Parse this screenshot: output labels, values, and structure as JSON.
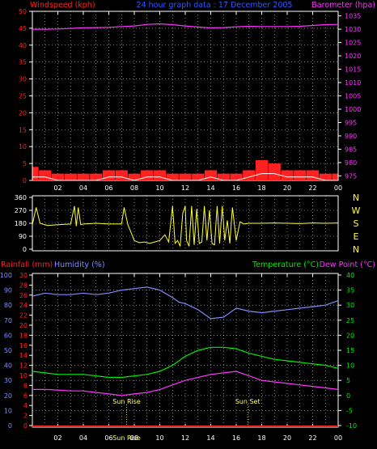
{
  "title": "24 hour graph data : 17 December 2005",
  "colors": {
    "wind": "#ff2020",
    "gust": "#ffffff",
    "baro": "#ff33ff",
    "dir": "#ffff33",
    "rain": "#ff2020",
    "hum": "#8888ff",
    "temp": "#00ee00",
    "dew": "#ff33ff",
    "sun": "#ffff66",
    "frame": "#ffffff",
    "grid": "#c8c8c8"
  },
  "chart_data": [
    {
      "type": "area",
      "title": "24 hour graph data : 17 December 2005",
      "x_ticks": [
        "02",
        "04",
        "06",
        "08",
        "10",
        "12",
        "14",
        "16",
        "18",
        "20",
        "22",
        "00"
      ],
      "left_label": "Windspeed (kph)",
      "right_label": "Barometer (hpa)",
      "left_ticks": [
        0,
        5,
        10,
        15,
        20,
        25,
        30,
        35,
        40,
        45,
        50
      ],
      "right_ticks": [
        975,
        980,
        985,
        990,
        995,
        1000,
        1005,
        1010,
        1015,
        1020,
        1025,
        1030,
        1035
      ],
      "left_range": [
        0,
        50
      ],
      "right_range": [
        973.3,
        1036.7
      ],
      "series": [
        {
          "name": "Windspeed",
          "axis": "left",
          "style": "bars",
          "x": [
            0,
            1,
            2,
            3,
            4,
            5,
            6,
            7,
            8,
            9,
            10,
            11,
            12,
            13,
            14,
            15,
            16,
            17,
            18,
            19,
            20,
            21,
            22,
            23,
            24
          ],
          "y": [
            4,
            3,
            2,
            2,
            2,
            2,
            3,
            3,
            2,
            3,
            3,
            2,
            2,
            2,
            3,
            2,
            2,
            3,
            6,
            5,
            3,
            3,
            3,
            2,
            2
          ]
        },
        {
          "name": "Gust",
          "axis": "left",
          "style": "line",
          "x": [
            0,
            1,
            2,
            3,
            4,
            5,
            6,
            7,
            8,
            9,
            10,
            11,
            12,
            13,
            14,
            15,
            16,
            17,
            18,
            19,
            20,
            21,
            22,
            23,
            24
          ],
          "y": [
            1,
            1,
            0,
            0,
            0,
            0,
            1,
            1,
            0,
            1,
            1,
            0,
            0,
            0,
            1,
            0,
            0,
            1,
            2,
            2,
            1,
            1,
            1,
            0,
            0
          ]
        },
        {
          "name": "Barometer",
          "axis": "right",
          "style": "line",
          "x": [
            0,
            1,
            2,
            3,
            4,
            5,
            6,
            7,
            8,
            9,
            10,
            11,
            12,
            13,
            14,
            15,
            16,
            17,
            18,
            19,
            20,
            21,
            22,
            23,
            24
          ],
          "y": [
            1030,
            1030,
            1030.1,
            1030.3,
            1030.5,
            1030.6,
            1030.7,
            1031,
            1031.2,
            1031.8,
            1032,
            1031.7,
            1031.2,
            1030.8,
            1030.5,
            1030.6,
            1030.9,
            1031.1,
            1031,
            1031,
            1031,
            1031.1,
            1031.4,
            1031.7,
            1031.8
          ]
        }
      ]
    },
    {
      "type": "line",
      "title": "",
      "x_ticks": [
        "02",
        "04",
        "06",
        "08",
        "10",
        "12",
        "14",
        "16",
        "18",
        "20",
        "22",
        "00"
      ],
      "left_ticks": [
        0,
        90,
        180,
        270,
        360
      ],
      "right_ticks": [
        "N",
        "W",
        "S",
        "E",
        "N"
      ],
      "left_range": [
        0,
        360
      ],
      "series": [
        {
          "name": "Wind direction",
          "axis": "left",
          "x": [
            0,
            0.3,
            0.6,
            1.2,
            2,
            3,
            3.3,
            3.45,
            3.6,
            3.8,
            4,
            5,
            6,
            7,
            7.2,
            7.5,
            8,
            8.4,
            8.8,
            9.2,
            9.6,
            10,
            10.4,
            10.7,
            11,
            11.2,
            11.4,
            11.6,
            11.8,
            12,
            12.1,
            12.3,
            12.5,
            12.7,
            12.9,
            13.1,
            13.3,
            13.5,
            13.7,
            13.9,
            14.1,
            14.3,
            14.5,
            14.7,
            14.9,
            15.1,
            15.3,
            15.5,
            15.7,
            16,
            16.3,
            16.6,
            17,
            18,
            19,
            20,
            21,
            22,
            23,
            24
          ],
          "y": [
            170,
            290,
            180,
            165,
            170,
            175,
            300,
            160,
            290,
            170,
            175,
            180,
            175,
            175,
            290,
            170,
            60,
            45,
            50,
            40,
            50,
            60,
            100,
            50,
            300,
            40,
            60,
            20,
            250,
            300,
            60,
            20,
            300,
            30,
            280,
            40,
            50,
            300,
            60,
            270,
            40,
            30,
            300,
            40,
            300,
            60,
            200,
            40,
            290,
            60,
            190,
            175,
            180,
            180,
            182,
            180,
            178,
            182,
            180,
            182
          ]
        }
      ]
    },
    {
      "type": "line",
      "title": "",
      "x_ticks": [
        "02",
        "04",
        "06",
        "08",
        "10",
        "12",
        "14",
        "16",
        "18",
        "20",
        "22",
        "00"
      ],
      "left_labels": [
        "Rainfall (mm)",
        "Humidity (%)"
      ],
      "right_labels": [
        "Temperature (°C)",
        "Dew Point (°C)"
      ],
      "humidity_ticks": [
        0,
        10,
        20,
        30,
        40,
        50,
        60,
        70,
        80,
        90,
        100
      ],
      "rain_ticks": [
        0,
        2,
        4,
        6,
        8,
        10,
        12,
        14,
        16,
        18,
        20,
        22,
        24,
        26,
        28,
        30
      ],
      "temp_ticks": [
        -10,
        -5,
        0,
        5,
        10,
        15,
        20,
        25,
        30,
        35,
        40
      ],
      "humidity_range": [
        0,
        100
      ],
      "rain_range": [
        0,
        30
      ],
      "temp_range": [
        -10,
        40
      ],
      "annotations": [
        {
          "text": "Sun Rise",
          "x": 7.4
        },
        {
          "text": "Sun Set",
          "x": 16.9
        },
        {
          "text": "Sun Rise",
          "x": 7.4
        }
      ],
      "series": [
        {
          "name": "Humidity",
          "axis": "humidity",
          "x": [
            0,
            1,
            2,
            3,
            4,
            5,
            6,
            7,
            8,
            9,
            10,
            11,
            11.5,
            12,
            13,
            14,
            15,
            16,
            17,
            18,
            19,
            20,
            21,
            22,
            23,
            24
          ],
          "y": [
            86,
            88,
            87,
            87,
            88,
            87,
            88,
            90,
            91,
            92,
            90,
            85,
            82,
            81,
            77,
            71,
            72,
            78,
            76,
            75,
            76,
            77,
            78,
            79,
            80,
            83
          ]
        },
        {
          "name": "Temperature",
          "axis": "temp",
          "x": [
            0,
            1,
            2,
            3,
            4,
            5,
            6,
            7,
            8,
            9,
            10,
            11,
            12,
            13,
            14,
            15,
            16,
            17,
            18,
            19,
            20,
            21,
            22,
            23,
            24
          ],
          "y": [
            8,
            7.5,
            7,
            7,
            7,
            6.5,
            6,
            6,
            6.5,
            7,
            8,
            10,
            13,
            15,
            16,
            16,
            15.5,
            14,
            13,
            12,
            11.5,
            11,
            10.5,
            10,
            9
          ]
        },
        {
          "name": "Dew Point",
          "axis": "temp",
          "x": [
            0,
            1,
            2,
            3,
            4,
            5,
            6,
            7,
            8,
            9,
            10,
            11,
            12,
            13,
            14,
            15,
            16,
            17,
            18,
            19,
            20,
            21,
            22,
            23,
            24
          ],
          "y": [
            2,
            2,
            1.8,
            1.5,
            1.5,
            1,
            0.5,
            0,
            0.5,
            1,
            2,
            3.5,
            5,
            6,
            7,
            7.5,
            8,
            6.5,
            5,
            4.5,
            4,
            3.5,
            3,
            2.5,
            2
          ]
        },
        {
          "name": "Rainfall",
          "axis": "rain",
          "x": [
            0,
            24
          ],
          "y": [
            0,
            0
          ]
        }
      ]
    }
  ]
}
